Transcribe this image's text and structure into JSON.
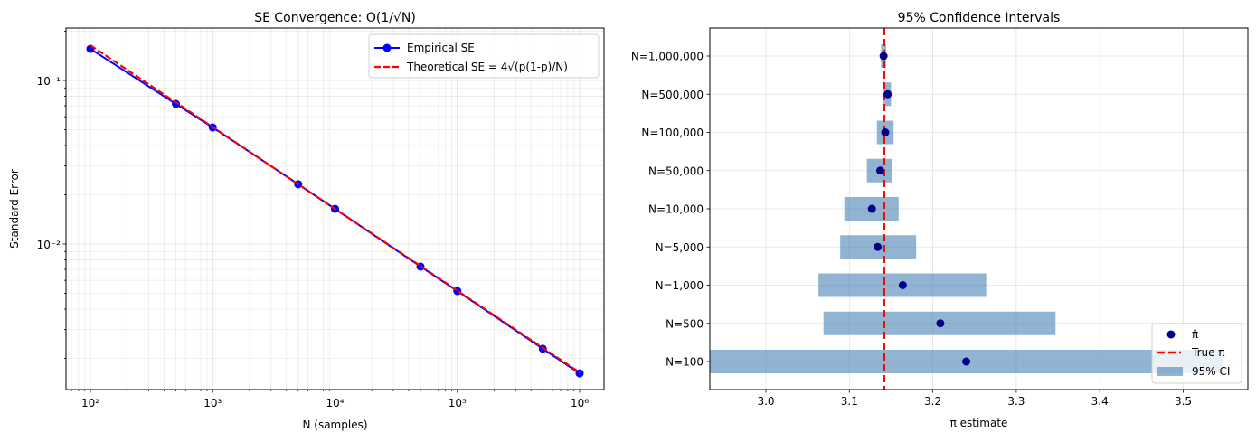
{
  "chart_data": [
    {
      "type": "line",
      "title": "SE Convergence: O(1/√N)",
      "xlabel": "N (samples)",
      "ylabel": "Standard Error",
      "xscale": "log",
      "yscale": "log",
      "grid": true,
      "legend_position": "upper right",
      "x_ticks": [
        "10^2",
        "10^3",
        "10^4",
        "10^5",
        "10^6"
      ],
      "y_ticks": [
        "10^-1",
        "10^-2"
      ],
      "xlim": [
        70,
        1400000
      ],
      "ylim": [
        0.00125,
        0.21
      ],
      "x": [
        100,
        500,
        1000,
        5000,
        10000,
        50000,
        100000,
        500000,
        1000000
      ],
      "series": [
        {
          "name": "Empirical SE",
          "color": "#0000ff",
          "style": "solid-marker",
          "values": [
            0.156,
            0.0718,
            0.0516,
            0.0232,
            0.0164,
            0.00728,
            0.00516,
            0.00229,
            0.00162
          ]
        },
        {
          "name": "Theoretical SE = 4√(p(1-p)/N)",
          "color": "#ff0000",
          "style": "dashed",
          "values": [
            0.164,
            0.0734,
            0.0519,
            0.0232,
            0.0164,
            0.00734,
            0.00519,
            0.00232,
            0.00164
          ]
        }
      ]
    },
    {
      "type": "bar",
      "orientation": "horizontal",
      "title": "95% Confidence Intervals",
      "xlabel": "π estimate",
      "ylabel": "",
      "grid": true,
      "legend_position": "lower right",
      "xlim": [
        2.933,
        3.58
      ],
      "x_ticks": [
        "3.0",
        "3.1",
        "3.2",
        "3.3",
        "3.4",
        "3.5"
      ],
      "true_pi": 3.14159,
      "categories": [
        "N=100",
        "N=500",
        "N=1,000",
        "N=5,000",
        "N=10,000",
        "N=50,000",
        "N=100,000",
        "N=500,000",
        "N=1,000,000"
      ],
      "series": [
        {
          "name": "π̂",
          "color": "#00008b",
          "values": [
            3.24,
            3.209,
            3.164,
            3.134,
            3.127,
            3.137,
            3.143,
            3.146,
            3.141
          ]
        },
        {
          "name": "95% CI lower",
          "color": "#8fb2d2",
          "values": [
            2.933,
            3.069,
            3.063,
            3.089,
            3.094,
            3.121,
            3.133,
            3.141,
            3.138
          ]
        },
        {
          "name": "95% CI upper",
          "color": "#8fb2d2",
          "values": [
            3.547,
            3.347,
            3.264,
            3.18,
            3.159,
            3.151,
            3.153,
            3.15,
            3.144
          ]
        }
      ],
      "legend": [
        "π̂",
        "True π",
        "95% CI"
      ]
    }
  ]
}
